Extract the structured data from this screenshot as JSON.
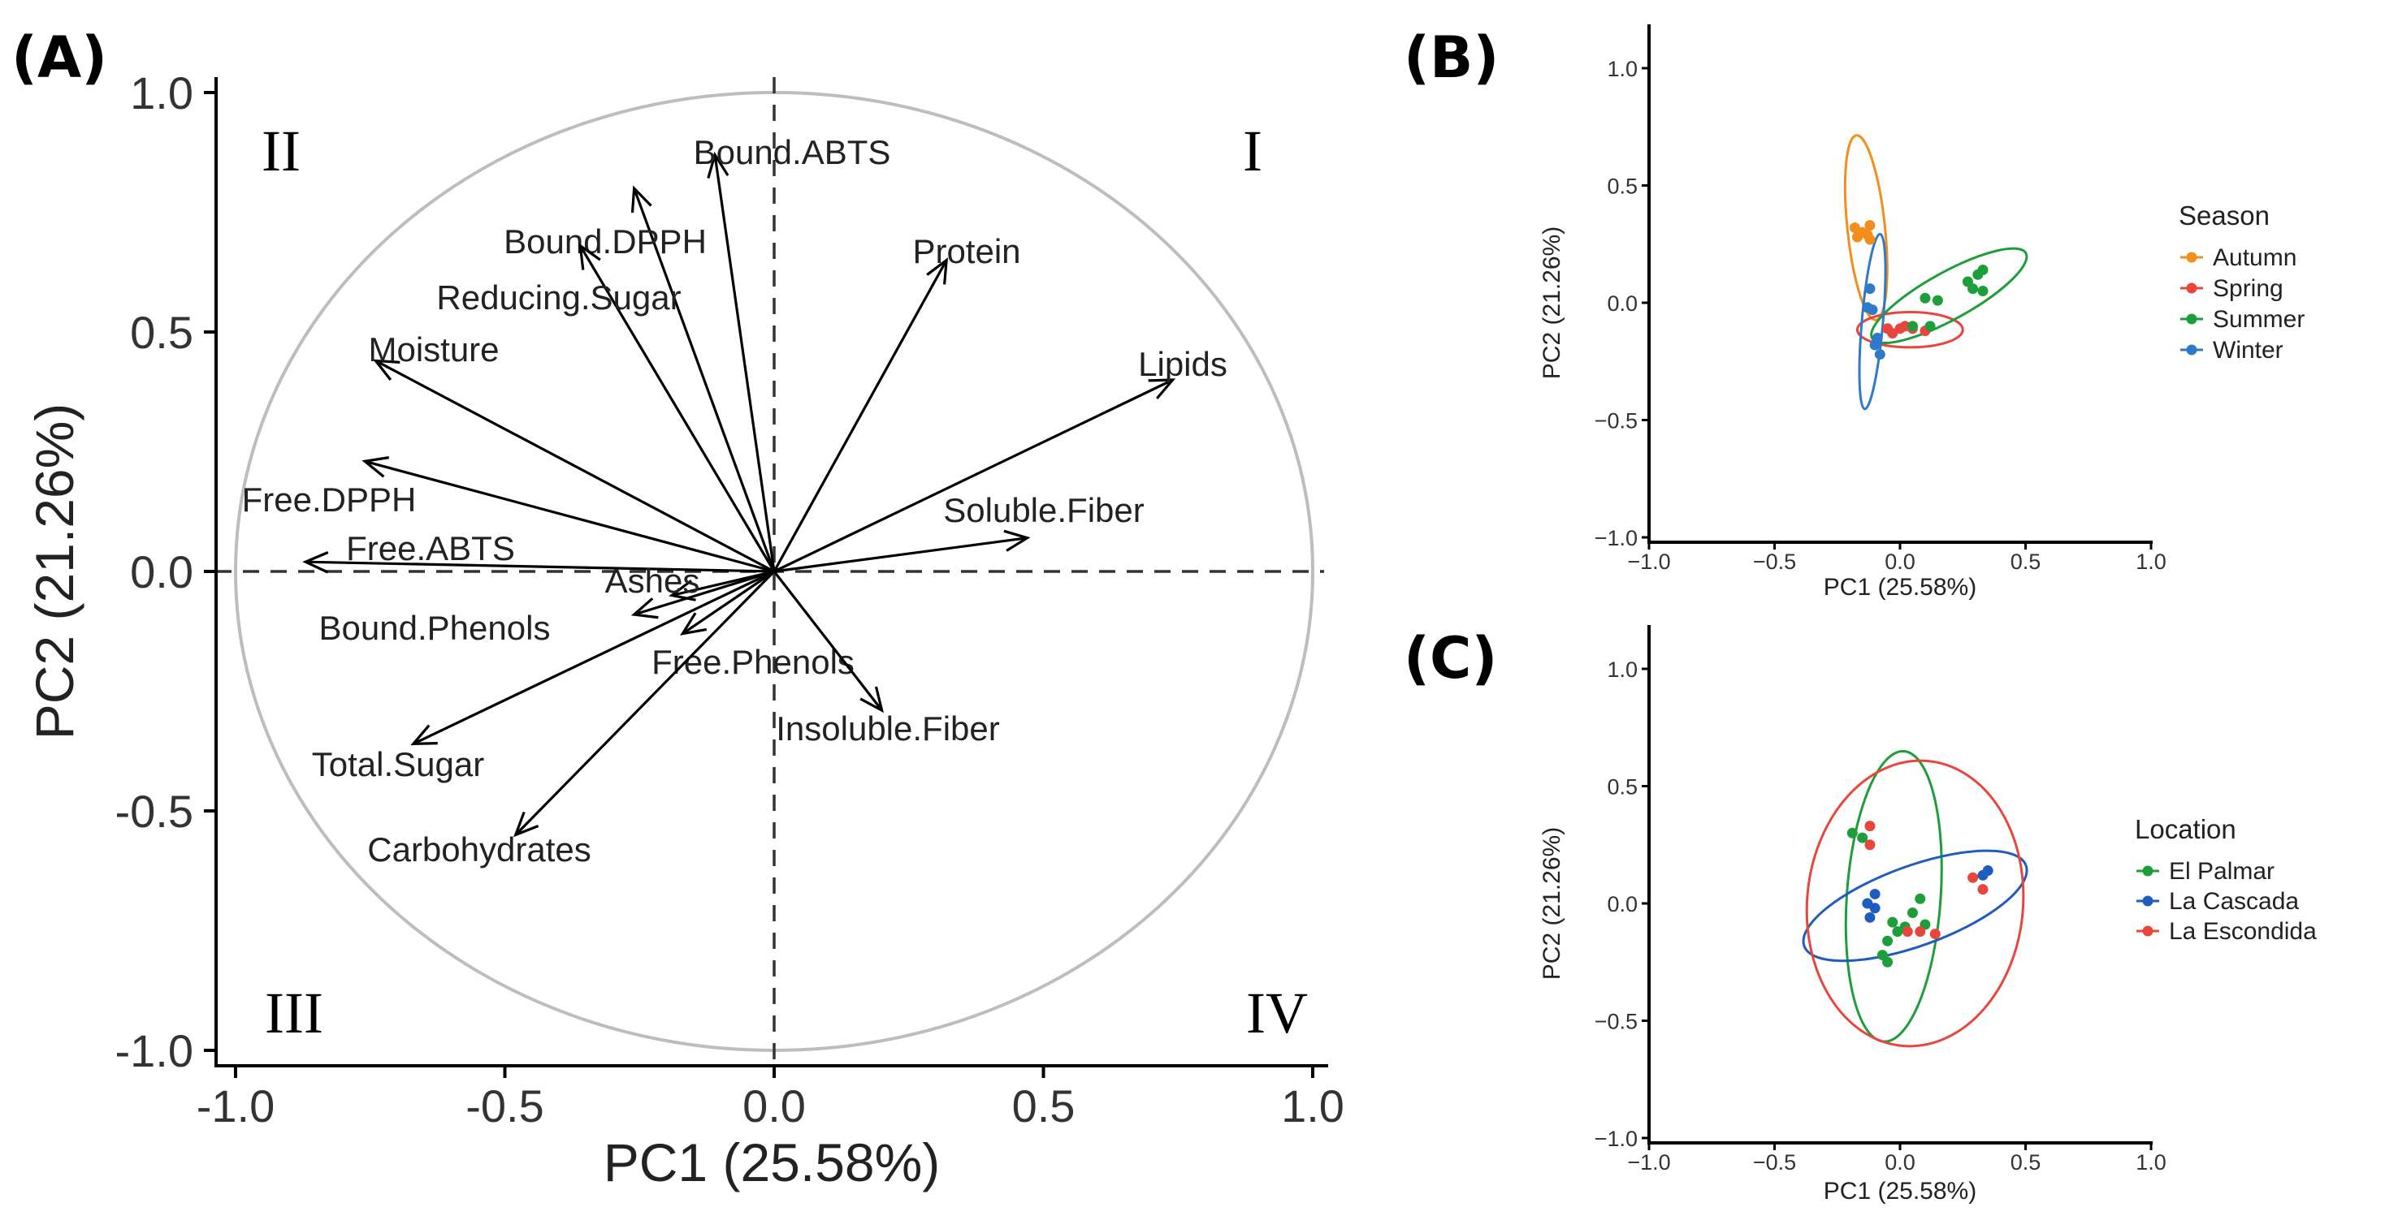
{
  "panel_labels": {
    "a": "(A)",
    "b": "(B)",
    "c": "(C)"
  },
  "colors": {
    "axis": "#000000",
    "circle": "#bdbdbd",
    "autumn": "#f28e1c",
    "spring": "#e8453c",
    "summer": "#1e9e3a",
    "winter": "#2f79c9",
    "el_palmar": "#1e9e3a",
    "la_cascada": "#1f5cbf",
    "la_escondida": "#e8453c"
  },
  "chart_data": [
    {
      "type": "scatter",
      "subtype": "pca-loading-biplot",
      "xlabel": "PC1 (25.58%)",
      "ylabel": "PC2 (21.26%)",
      "xlim": [
        -1.0,
        1.0
      ],
      "ylim": [
        -1.0,
        1.0
      ],
      "xticks": [
        "-1.0",
        "-0.5",
        "0.0",
        "0.5",
        "1.0"
      ],
      "yticks": [
        "-1.0",
        "-0.5",
        "0.0",
        "0.5",
        "1.0"
      ],
      "quadrants": [
        "I",
        "II",
        "III",
        "IV"
      ],
      "grid": false,
      "unit_circle": true,
      "vectors": [
        {
          "label": "Bound.ABTS",
          "x": -0.11,
          "y": 0.87
        },
        {
          "label": "Bound.DPPH",
          "x": -0.26,
          "y": 0.8
        },
        {
          "label": "Reducing.Sugar",
          "x": -0.36,
          "y": 0.68
        },
        {
          "label": "Protein",
          "x": 0.32,
          "y": 0.65
        },
        {
          "label": "Moisture",
          "x": -0.74,
          "y": 0.44
        },
        {
          "label": "Lipids",
          "x": 0.74,
          "y": 0.4
        },
        {
          "label": "Free.DPPH",
          "x": -0.76,
          "y": 0.23
        },
        {
          "label": "Soluble.Fiber",
          "x": 0.47,
          "y": 0.07
        },
        {
          "label": "Free.ABTS",
          "x": -0.87,
          "y": 0.02
        },
        {
          "label": "Ashes",
          "x": -0.19,
          "y": -0.05
        },
        {
          "label": "Bound.Phenols",
          "x": -0.26,
          "y": -0.09
        },
        {
          "label": "Free.Phenols",
          "x": -0.17,
          "y": -0.13
        },
        {
          "label": "Insoluble.Fiber",
          "x": 0.2,
          "y": -0.29
        },
        {
          "label": "Total.Sugar",
          "x": -0.67,
          "y": -0.36
        },
        {
          "label": "Carbohydrates",
          "x": -0.48,
          "y": -0.55
        }
      ]
    },
    {
      "type": "scatter",
      "xlabel": "PC1 (25.58%)",
      "ylabel": "PC2 (21.26%)",
      "xlim": [
        -1.0,
        1.0
      ],
      "ylim": [
        -1.0,
        1.0
      ],
      "xticks": [
        "−1.0",
        "−0.5",
        "0.0",
        "0.5",
        "1.0"
      ],
      "yticks": [
        "−1.0",
        "−0.5",
        "0.0",
        "0.5",
        "1.0"
      ],
      "legend_title": "Season",
      "legend_position": "right",
      "series": [
        {
          "name": "Autumn",
          "color_key": "autumn",
          "points": [
            [
              -0.18,
              0.32
            ],
            [
              -0.15,
              0.3
            ],
            [
              -0.12,
              0.33
            ],
            [
              -0.17,
              0.28
            ],
            [
              -0.13,
              0.29
            ],
            [
              -0.12,
              0.27
            ]
          ],
          "ellipse": {
            "cx": -0.135,
            "cy": 0.32,
            "rx": 0.37,
            "ry": 0.08,
            "angle": -84
          }
        },
        {
          "name": "Spring",
          "color_key": "spring",
          "points": [
            [
              -0.05,
              -0.11
            ],
            [
              -0.03,
              -0.13
            ],
            [
              0.0,
              -0.11
            ],
            [
              0.02,
              -0.1
            ],
            [
              0.05,
              -0.11
            ],
            [
              0.1,
              -0.12
            ]
          ],
          "ellipse": {
            "cx": 0.04,
            "cy": -0.115,
            "rx": 0.21,
            "ry": 0.075,
            "angle": 0
          }
        },
        {
          "name": "Summer",
          "color_key": "summer",
          "points": [
            [
              0.05,
              -0.1
            ],
            [
              0.12,
              -0.1
            ],
            [
              0.1,
              0.02
            ],
            [
              0.15,
              0.01
            ],
            [
              0.27,
              0.09
            ],
            [
              0.31,
              0.12
            ],
            [
              0.33,
              0.14
            ],
            [
              0.29,
              0.06
            ],
            [
              0.33,
              0.05
            ]
          ],
          "ellipse": {
            "cx": 0.195,
            "cy": 0.03,
            "rx": 0.35,
            "ry": 0.1,
            "angle": 29
          }
        },
        {
          "name": "Winter",
          "color_key": "winter",
          "points": [
            [
              -0.12,
              0.06
            ],
            [
              -0.11,
              -0.03
            ],
            [
              -0.13,
              -0.02
            ],
            [
              -0.1,
              -0.18
            ],
            [
              -0.08,
              -0.22
            ],
            [
              -0.09,
              -0.15
            ]
          ],
          "ellipse": {
            "cx": -0.11,
            "cy": -0.08,
            "rx": 0.35,
            "ry": 0.045,
            "angle": 85
          }
        }
      ]
    },
    {
      "type": "scatter",
      "xlabel": "PC1 (25.58%)",
      "ylabel": "PC2 (21.26%)",
      "xlim": [
        -1.0,
        1.0
      ],
      "ylim": [
        -1.0,
        1.0
      ],
      "xticks": [
        "−1.0",
        "−0.5",
        "0.0",
        "0.5",
        "1.0"
      ],
      "yticks": [
        "−1.0",
        "−0.5",
        "0.0",
        "0.5",
        "1.0"
      ],
      "legend_title": "Location",
      "legend_position": "right",
      "series": [
        {
          "name": "El Palmar",
          "color_key": "el_palmar",
          "points": [
            [
              -0.19,
              0.3
            ],
            [
              -0.15,
              0.28
            ],
            [
              0.08,
              0.02
            ],
            [
              0.05,
              -0.04
            ],
            [
              -0.03,
              -0.08
            ],
            [
              -0.01,
              -0.12
            ],
            [
              0.02,
              -0.1
            ],
            [
              -0.05,
              -0.16
            ],
            [
              -0.07,
              -0.22
            ],
            [
              -0.05,
              -0.25
            ],
            [
              0.1,
              -0.09
            ]
          ],
          "ellipse": {
            "cx": -0.025,
            "cy": 0.03,
            "rx": 0.58,
            "ry": 0.2,
            "angle": 86
          }
        },
        {
          "name": "La Cascada",
          "color_key": "la_cascada",
          "points": [
            [
              -0.1,
              0.04
            ],
            [
              -0.13,
              0.0
            ],
            [
              -0.1,
              -0.02
            ],
            [
              -0.12,
              -0.06
            ],
            [
              0.33,
              0.12
            ],
            [
              0.35,
              0.14
            ]
          ],
          "ellipse": {
            "cx": 0.06,
            "cy": -0.01,
            "rx": 0.47,
            "ry": 0.17,
            "angle": 20
          }
        },
        {
          "name": "La Escondida",
          "color_key": "la_escondida",
          "points": [
            [
              -0.12,
              0.33
            ],
            [
              -0.12,
              0.25
            ],
            [
              0.29,
              0.11
            ],
            [
              0.33,
              0.06
            ],
            [
              0.08,
              -0.12
            ],
            [
              0.14,
              -0.13
            ],
            [
              0.03,
              -0.12
            ]
          ],
          "ellipse": {
            "cx": 0.06,
            "cy": 0.0,
            "rx": 0.57,
            "ry": 0.46,
            "angle": 85
          }
        }
      ]
    }
  ]
}
